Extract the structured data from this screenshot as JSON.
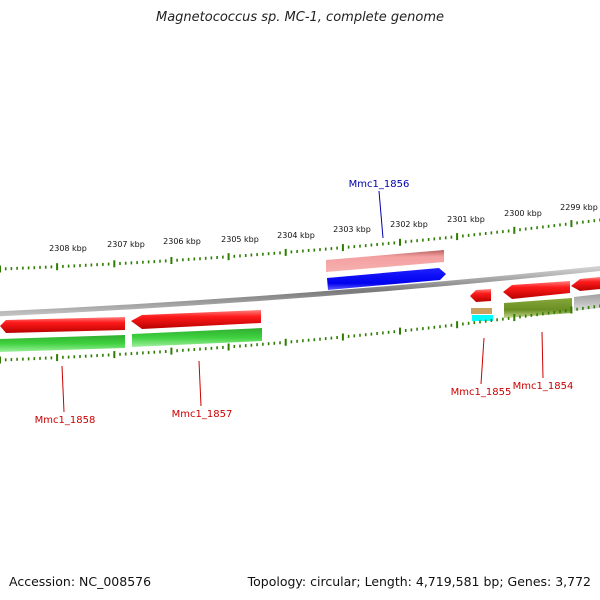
{
  "title": "Magnetococcus sp. MC-1, complete genome",
  "footer": {
    "accession": "Accession: NC_008576",
    "info": "Topology: circular; Length: 4,719,581 bp; Genes: 3,772"
  },
  "ruler": {
    "labels": [
      "2308 kbp",
      "2307 kbp",
      "2306 kbp",
      "2305 kbp",
      "2304 kbp",
      "2303 kbp",
      "2302 kbp",
      "2301 kbp",
      "2300 kbp",
      "2299 kbp"
    ]
  },
  "genes": [
    {
      "name": "Mmc1_1856",
      "color": "#0000aa"
    },
    {
      "name": "Mmc1_1858",
      "color": "#cc0000"
    },
    {
      "name": "Mmc1_1857",
      "color": "#cc0000"
    },
    {
      "name": "Mmc1_1855",
      "color": "#cc0000"
    },
    {
      "name": "Mmc1_1854",
      "color": "#cc0000"
    }
  ],
  "colors": {
    "tick": "#2e7d00",
    "backbone": "#8a8a8a",
    "gene_red": "#ff1010",
    "gene_green": "#33cc33",
    "gene_blue": "#0000ee",
    "gene_pink": "#f09090",
    "gene_olive": "#6b8e23",
    "gene_gray": "#bbbbbb",
    "gene_cyan": "#00ffff",
    "gene_tan": "#c8a060"
  }
}
